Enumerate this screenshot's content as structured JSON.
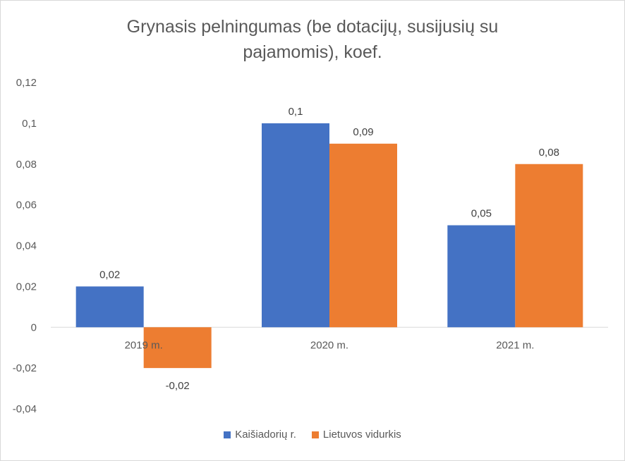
{
  "chart_data": {
    "type": "bar",
    "title_lines": [
      "Grynasis pelningumas (be dotacijų, susijusių su",
      "pajamomis), koef."
    ],
    "categories": [
      "2019 m.",
      "2020 m.",
      "2021 m."
    ],
    "series": [
      {
        "name": "Kaišiadorių r.",
        "color": "#4472C4",
        "values": [
          0.02,
          0.1,
          0.05
        ],
        "labels": [
          "0,02",
          "0,1",
          "0,05"
        ]
      },
      {
        "name": "Lietuvos vidurkis",
        "color": "#ED7D31",
        "values": [
          -0.02,
          0.09,
          0.08
        ],
        "labels": [
          "-0,02",
          "0,09",
          "0,08"
        ]
      }
    ],
    "yticks": [
      {
        "value": 0.12,
        "label": "0,12"
      },
      {
        "value": 0.1,
        "label": "0,1"
      },
      {
        "value": 0.08,
        "label": "0,08"
      },
      {
        "value": 0.06,
        "label": "0,06"
      },
      {
        "value": 0.04,
        "label": "0,04"
      },
      {
        "value": 0.02,
        "label": "0,02"
      },
      {
        "value": 0,
        "label": "0"
      },
      {
        "value": -0.02,
        "label": "-0,02"
      },
      {
        "value": -0.04,
        "label": "-0,04"
      }
    ],
    "ylim": [
      -0.04,
      0.12
    ],
    "grid": false,
    "legend_position": "bottom"
  }
}
